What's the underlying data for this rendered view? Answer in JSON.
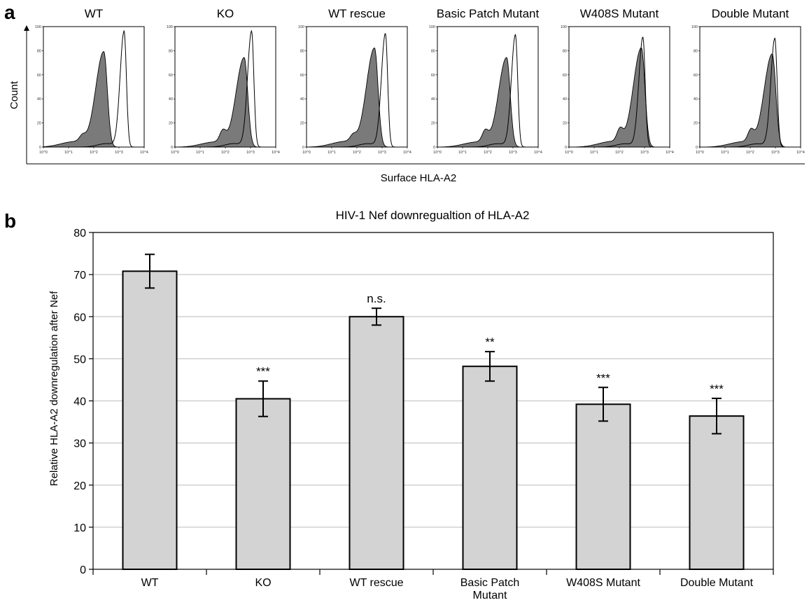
{
  "panel_a": {
    "label": "a",
    "y_axis_label": "Count",
    "x_axis_label": "Surface HLA-A2",
    "y_tick_labels": [
      "0",
      "20",
      "40",
      "60",
      "80",
      "100"
    ],
    "x_tick_labels": [
      "10^0",
      "10^1",
      "10^2",
      "10^3",
      "10^4"
    ]
  },
  "panel_b": {
    "label": "b"
  },
  "chart_data": [
    {
      "type": "area",
      "chart": "flow cytometry histograms",
      "xscale": "log",
      "xlim": [
        1,
        10000
      ],
      "ylim": [
        0,
        100
      ],
      "ylabel": "Count",
      "xlabel": "Surface HLA-A2",
      "legend": "none",
      "panels": [
        {
          "title": "WT",
          "filled_peak": [
            250,
            79
          ],
          "open_peak": [
            1600,
            96
          ]
        },
        {
          "title": "KO",
          "filled_peak": [
            560,
            74
          ],
          "open_peak": [
            1100,
            96
          ]
        },
        {
          "title": "WT rescue",
          "filled_peak": [
            500,
            82
          ],
          "open_peak": [
            1350,
            94
          ]
        },
        {
          "title": "Basic Patch Mutant",
          "filled_peak": [
            560,
            74
          ],
          "open_peak": [
            1250,
            93
          ]
        },
        {
          "title": "W408S Mutant",
          "filled_peak": [
            750,
            82
          ],
          "open_peak": [
            860,
            91
          ]
        },
        {
          "title": "Double Mutant",
          "filled_peak": [
            750,
            77
          ],
          "open_peak": [
            950,
            90
          ]
        }
      ]
    },
    {
      "type": "bar",
      "title": "HIV-1 Nef downregualtion of HLA-A2",
      "xlabel": "",
      "ylabel": "Relative HLA-A2 downregulation after Nef",
      "categories": [
        "WT",
        "KO",
        "WT rescue",
        "Basic Patch Mutant",
        "W408S Mutant",
        "Double Mutant"
      ],
      "values": [
        70.8,
        40.5,
        60.0,
        48.2,
        39.2,
        36.4
      ],
      "errors": [
        4.0,
        4.2,
        2.0,
        3.5,
        4.0,
        4.2
      ],
      "significance": [
        "",
        "***",
        "n.s.",
        "**",
        "***",
        "***"
      ],
      "ylim": [
        0,
        80
      ],
      "yticks": [
        0,
        10,
        20,
        30,
        40,
        50,
        60,
        70,
        80
      ],
      "grid": true,
      "bar_color": "#d3d3d3"
    }
  ]
}
